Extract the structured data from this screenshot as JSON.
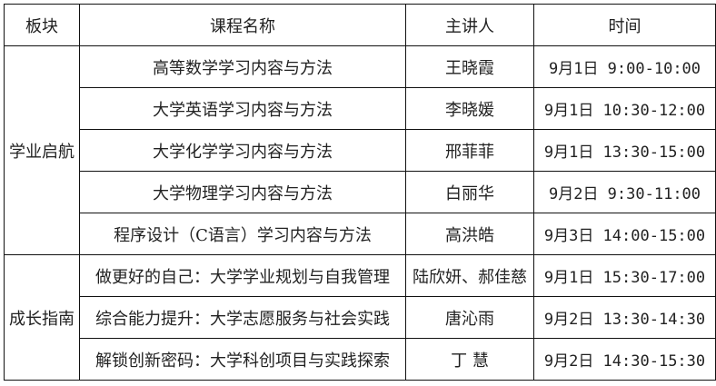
{
  "headers": {
    "section": "板块",
    "course": "课程名称",
    "speaker": "主讲人",
    "time": "时间"
  },
  "sections": [
    {
      "name": "学业启航",
      "rows": [
        {
          "course": "高等数学学习内容与方法",
          "speaker": "王晓霞",
          "time": "9月1日 9:00-10:00"
        },
        {
          "course": "大学英语学习内容与方法",
          "speaker": "李晓媛",
          "time": "9月1日 10:30-12:00"
        },
        {
          "course": "大学化学学习内容与方法",
          "speaker": "邢菲菲",
          "time": "9月1日 13:30-15:00"
        },
        {
          "course": "大学物理学习内容与方法",
          "speaker": "白丽华",
          "time": "9月2日 9:30-11:00"
        },
        {
          "course": "程序设计（C语言）学习内容与方法",
          "speaker": "高洪皓",
          "time": "9月3日 14:00-15:00"
        }
      ]
    },
    {
      "name": "成长指南",
      "rows": [
        {
          "course": "做更好的自己：大学学业规划与自我管理",
          "speaker": "陆欣妍、郝佳慈",
          "time": "9月1日 15:30-17:00"
        },
        {
          "course": "综合能力提升：大学志愿服务与社会实践",
          "speaker": "唐沁雨",
          "time": "9月2日 13:30-14:30"
        },
        {
          "course": "解锁创新密码：大学科创项目与实践探索",
          "speaker": "丁 慧",
          "time": "9月2日 14:30-15:30"
        }
      ]
    }
  ]
}
